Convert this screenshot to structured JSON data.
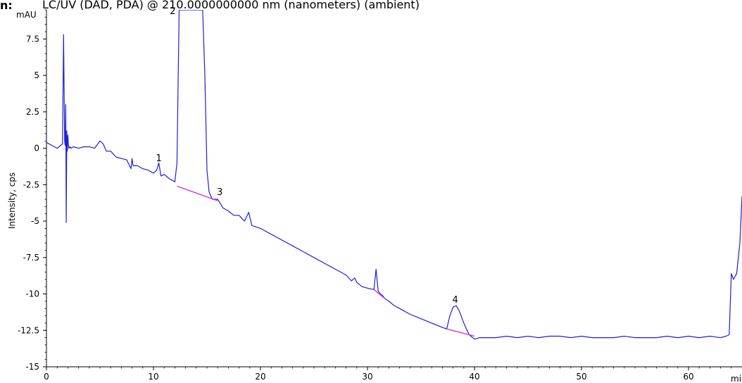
{
  "header": {
    "prefix": "n:",
    "title": "LC/UV (DAD, PDA) @ 210.0000000000 nm (nanometers) (ambient)"
  },
  "chart_data": {
    "type": "line",
    "title": "LC/UV (DAD, PDA) @ 210.0000000000 nm (nanometers) (ambient)",
    "ylabel": "Intensity, cps",
    "yunit": "mAU",
    "xunit": "min",
    "xlim": [
      0,
      65
    ],
    "ylim": [
      -15,
      9.5
    ],
    "xticks": [
      "0",
      "10",
      "20",
      "30",
      "40",
      "50",
      "60"
    ],
    "yticks": [
      "7.5",
      "5",
      "2.5",
      "0",
      "-2.5",
      "-5",
      "-7.5",
      "-10",
      "-12.5",
      "-15"
    ],
    "colors": {
      "trace": "#1f1fd6",
      "baseline": "#e020e0",
      "axis": "#000000"
    },
    "series": [
      {
        "role": "trace",
        "x": [
          0,
          0.5,
          1.0,
          1.5,
          1.6,
          1.7,
          1.75,
          1.8,
          1.85,
          1.9,
          1.95,
          2.0,
          2.05,
          2.1,
          2.2,
          2.3,
          2.5,
          3.0,
          3.5,
          4.0,
          4.5,
          5.0,
          5.3,
          5.6,
          6.0,
          6.5,
          7.0,
          7.5,
          7.9,
          8.0,
          8.1,
          8.5,
          9.0,
          9.5,
          10.0,
          10.3,
          10.5,
          10.7,
          11.0,
          11.5,
          12.0,
          12.2,
          12.4,
          12.6,
          14.6,
          14.8,
          15.0,
          15.2,
          15.5,
          16.0,
          16.5,
          17.0,
          17.5,
          18.0,
          18.5,
          18.9,
          19.2,
          20.0,
          21.0,
          22.0,
          23.0,
          24.0,
          25.0,
          26.0,
          27.0,
          28.0,
          28.5,
          28.8,
          29.0,
          29.5,
          30.0,
          30.6,
          30.8,
          31.0,
          31.2,
          31.4,
          31.6,
          32.0,
          32.5,
          33.0,
          34.0,
          35.0,
          36.0,
          37.0,
          37.4,
          37.7,
          38.0,
          38.3,
          38.6,
          39.0,
          39.5,
          40.0,
          40.5,
          41.0,
          42.0,
          43.0,
          44.0,
          45.0,
          46.0,
          47.0,
          48.0,
          49.0,
          50.0,
          51.0,
          52.0,
          53.0,
          54.0,
          55.0,
          56.0,
          57.0,
          58.0,
          59.0,
          60.0,
          61.0,
          62.0,
          63.0,
          63.5,
          63.8,
          64.0,
          64.2,
          64.5,
          64.8,
          65.0
        ],
        "y": [
          0.4,
          0.2,
          0.0,
          0.3,
          7.8,
          0.5,
          0.2,
          3.0,
          -5.1,
          1.2,
          -0.2,
          0.9,
          0.2,
          0.0,
          0.1,
          0.0,
          0.1,
          0.0,
          0.1,
          0.1,
          0.0,
          0.5,
          0.3,
          -0.2,
          -0.2,
          -0.6,
          -0.7,
          -0.8,
          -1.4,
          -0.7,
          -1.2,
          -1.2,
          -1.4,
          -1.5,
          -1.7,
          -1.5,
          -1.0,
          -1.9,
          -1.8,
          -2.1,
          -2.3,
          -1.0,
          9.5,
          9.5,
          9.5,
          5.0,
          -1.5,
          -3.0,
          -3.5,
          -3.5,
          -4.1,
          -4.3,
          -4.6,
          -4.6,
          -5.0,
          -4.4,
          -5.3,
          -5.5,
          -5.9,
          -6.3,
          -6.7,
          -7.1,
          -7.5,
          -7.9,
          -8.3,
          -8.7,
          -9.1,
          -8.9,
          -9.2,
          -9.5,
          -9.6,
          -9.7,
          -8.3,
          -9.8,
          -10.0,
          -10.1,
          -10.3,
          -10.5,
          -10.8,
          -11.0,
          -11.4,
          -11.7,
          -12.0,
          -12.3,
          -12.4,
          -11.5,
          -10.9,
          -10.8,
          -11.2,
          -12.0,
          -12.8,
          -13.1,
          -13.0,
          -13.0,
          -13.0,
          -12.9,
          -13.0,
          -12.9,
          -13.0,
          -12.9,
          -12.9,
          -13.0,
          -12.9,
          -13.0,
          -13.0,
          -13.0,
          -12.9,
          -13.0,
          -13.0,
          -13.0,
          -12.9,
          -13.0,
          -12.9,
          -13.0,
          -12.9,
          -13.0,
          -12.9,
          -12.8,
          -8.6,
          -9.0,
          -8.6,
          -6.5,
          -3.3
        ]
      },
      {
        "role": "baseline",
        "x": [
          12.2,
          16.0
        ],
        "y": [
          -2.6,
          -3.6
        ]
      },
      {
        "role": "baseline",
        "x": [
          30.6,
          31.6
        ],
        "y": [
          -9.7,
          -10.3
        ]
      },
      {
        "role": "baseline",
        "x": [
          37.4,
          40.0
        ],
        "y": [
          -12.4,
          -12.9
        ]
      }
    ],
    "annotations": [
      {
        "text": "1",
        "x": 10.5,
        "y": -0.9
      },
      {
        "text": "2",
        "x": 11.8,
        "y": 9.2
      },
      {
        "text": "3",
        "x": 16.2,
        "y": -3.2
      },
      {
        "text": "4",
        "x": 38.2,
        "y": -10.6
      }
    ]
  }
}
